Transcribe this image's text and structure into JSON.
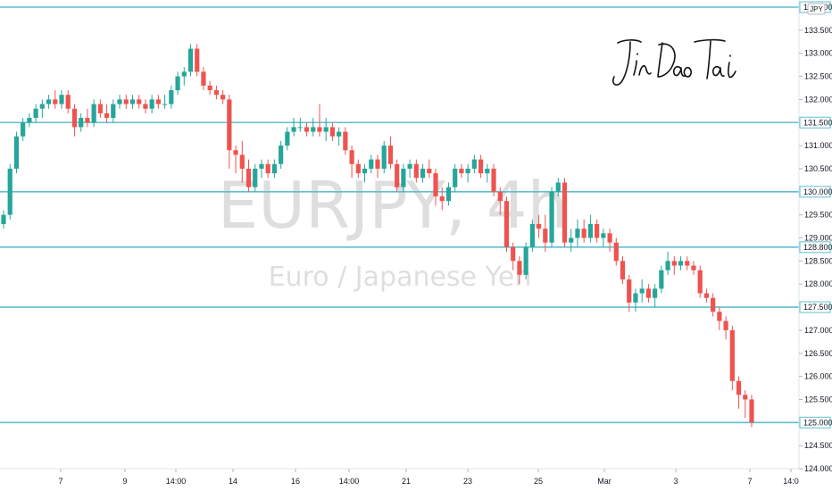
{
  "chart_data": {
    "type": "candlestick",
    "watermark": {
      "symbol": "EURJPY, 4h",
      "name": "Euro / Japanese Yen"
    },
    "currency": "JPY",
    "y_axis": {
      "range": [
        124.0,
        134.1
      ],
      "ticks": [
        "124.000",
        "124.500",
        "125.500",
        "126.000",
        "126.500",
        "127.000",
        "128.000",
        "128.500",
        "129.000",
        "129.500",
        "130.500",
        "131.000",
        "132.000",
        "132.500",
        "133.000",
        "133.500"
      ]
    },
    "x_axis": {
      "ticks": [
        "7",
        "9",
        "14:00",
        "14",
        "16",
        "14:00",
        "21",
        "23",
        "25",
        "Mar",
        "3",
        "7",
        "14:0"
      ]
    },
    "levels": [
      {
        "value": 134.0,
        "label": "134.000"
      },
      {
        "value": 131.5,
        "label": "131.500"
      },
      {
        "value": 130.0,
        "label": "130.000"
      },
      {
        "value": 128.8,
        "label": "128.800"
      },
      {
        "value": 127.5,
        "label": "127.500"
      },
      {
        "value": 125.0,
        "label": "125.000"
      }
    ],
    "level_color": "#5fbfcf",
    "up_color": "#26a69a",
    "down_color": "#ef5350",
    "candles": [
      [
        129.3,
        129.6,
        129.2,
        129.5
      ],
      [
        129.5,
        130.6,
        129.4,
        130.5
      ],
      [
        130.5,
        131.3,
        130.4,
        131.2
      ],
      [
        131.2,
        131.6,
        131.1,
        131.5
      ],
      [
        131.5,
        131.7,
        131.4,
        131.6
      ],
      [
        131.6,
        131.9,
        131.5,
        131.8
      ],
      [
        131.8,
        132.0,
        131.6,
        131.9
      ],
      [
        131.9,
        132.1,
        131.8,
        132.0
      ],
      [
        132.0,
        132.2,
        131.8,
        131.9
      ],
      [
        131.9,
        132.2,
        131.8,
        132.1
      ],
      [
        132.1,
        132.2,
        131.7,
        131.8
      ],
      [
        131.8,
        131.9,
        131.2,
        131.4
      ],
      [
        131.4,
        131.7,
        131.3,
        131.6
      ],
      [
        131.6,
        131.8,
        131.4,
        131.5
      ],
      [
        131.5,
        132.0,
        131.4,
        131.9
      ],
      [
        131.9,
        132.0,
        131.6,
        131.7
      ],
      [
        131.7,
        131.9,
        131.5,
        131.6
      ],
      [
        131.6,
        132.0,
        131.5,
        131.9
      ],
      [
        131.9,
        132.1,
        131.8,
        132.0
      ],
      [
        132.0,
        132.1,
        131.8,
        131.9
      ],
      [
        131.9,
        132.1,
        131.8,
        132.0
      ],
      [
        132.0,
        132.1,
        131.8,
        131.9
      ],
      [
        131.9,
        132.0,
        131.7,
        131.8
      ],
      [
        131.8,
        132.1,
        131.7,
        132.0
      ],
      [
        132.0,
        132.1,
        131.8,
        131.9
      ],
      [
        131.9,
        132.1,
        131.8,
        131.9
      ],
      [
        131.9,
        132.3,
        131.8,
        132.2
      ],
      [
        132.2,
        132.6,
        132.1,
        132.5
      ],
      [
        132.5,
        132.7,
        132.3,
        132.6
      ],
      [
        132.6,
        133.2,
        132.5,
        133.1
      ],
      [
        133.1,
        133.2,
        132.5,
        132.6
      ],
      [
        132.6,
        132.7,
        132.2,
        132.3
      ],
      [
        132.3,
        132.4,
        132.1,
        132.2
      ],
      [
        132.2,
        132.3,
        132.0,
        132.1
      ],
      [
        132.1,
        132.2,
        131.9,
        132.0
      ],
      [
        132.0,
        132.1,
        130.5,
        130.9
      ],
      [
        130.9,
        131.0,
        130.4,
        130.8
      ],
      [
        130.8,
        131.1,
        130.2,
        130.5
      ],
      [
        130.5,
        130.7,
        130.0,
        130.1
      ],
      [
        130.1,
        130.6,
        130.0,
        130.5
      ],
      [
        130.5,
        130.7,
        130.3,
        130.6
      ],
      [
        130.6,
        130.7,
        130.3,
        130.4
      ],
      [
        130.4,
        130.7,
        130.3,
        130.6
      ],
      [
        130.6,
        131.1,
        130.5,
        131.0
      ],
      [
        131.0,
        131.4,
        130.9,
        131.3
      ],
      [
        131.3,
        131.6,
        131.2,
        131.4
      ],
      [
        131.4,
        131.6,
        131.3,
        131.4
      ],
      [
        131.4,
        131.5,
        131.2,
        131.3
      ],
      [
        131.3,
        131.6,
        131.2,
        131.4
      ],
      [
        131.4,
        131.9,
        131.2,
        131.3
      ],
      [
        131.3,
        131.6,
        131.1,
        131.4
      ],
      [
        131.4,
        131.5,
        131.1,
        131.2
      ],
      [
        131.2,
        131.4,
        131.0,
        131.3
      ],
      [
        131.3,
        131.4,
        130.8,
        130.9
      ],
      [
        130.9,
        131.0,
        130.3,
        130.6
      ],
      [
        130.6,
        130.7,
        130.3,
        130.4
      ],
      [
        130.4,
        130.6,
        130.2,
        130.5
      ],
      [
        130.5,
        130.8,
        130.4,
        130.7
      ],
      [
        130.7,
        130.8,
        130.3,
        130.5
      ],
      [
        130.5,
        131.1,
        130.4,
        131.0
      ],
      [
        131.0,
        131.2,
        130.5,
        130.6
      ],
      [
        130.6,
        130.7,
        130.0,
        130.1
      ],
      [
        130.1,
        130.6,
        130.0,
        130.5
      ],
      [
        130.5,
        130.7,
        130.3,
        130.6
      ],
      [
        130.6,
        130.7,
        130.2,
        130.3
      ],
      [
        130.3,
        130.6,
        130.2,
        130.5
      ],
      [
        130.5,
        130.7,
        130.3,
        130.4
      ],
      [
        130.4,
        130.5,
        129.7,
        129.9
      ],
      [
        129.9,
        130.1,
        129.6,
        129.8
      ],
      [
        129.8,
        130.2,
        129.7,
        130.1
      ],
      [
        130.1,
        130.6,
        130.0,
        130.5
      ],
      [
        130.5,
        130.6,
        130.3,
        130.4
      ],
      [
        130.4,
        130.6,
        130.2,
        130.5
      ],
      [
        130.5,
        130.8,
        130.4,
        130.7
      ],
      [
        130.7,
        130.8,
        130.3,
        130.4
      ],
      [
        130.4,
        130.6,
        130.2,
        130.5
      ],
      [
        130.5,
        130.6,
        129.9,
        130.0
      ],
      [
        130.0,
        130.1,
        129.5,
        129.8
      ],
      [
        129.8,
        129.9,
        128.7,
        128.8
      ],
      [
        128.8,
        128.9,
        128.3,
        128.5
      ],
      [
        128.5,
        128.6,
        128.0,
        128.2
      ],
      [
        128.2,
        128.9,
        128.1,
        128.8
      ],
      [
        128.8,
        129.4,
        128.7,
        129.3
      ],
      [
        129.3,
        129.5,
        129.0,
        129.2
      ],
      [
        129.2,
        129.5,
        128.7,
        128.9
      ],
      [
        128.9,
        130.1,
        128.8,
        130.0
      ],
      [
        130.0,
        130.3,
        129.9,
        130.2
      ],
      [
        130.2,
        130.3,
        128.8,
        128.9
      ],
      [
        128.9,
        129.2,
        128.7,
        129.0
      ],
      [
        129.0,
        129.4,
        128.8,
        129.2
      ],
      [
        129.2,
        129.4,
        128.9,
        129.0
      ],
      [
        129.0,
        129.5,
        128.9,
        129.3
      ],
      [
        129.3,
        129.4,
        128.9,
        129.0
      ],
      [
        129.0,
        129.2,
        128.8,
        129.1
      ],
      [
        129.1,
        129.2,
        128.7,
        128.9
      ],
      [
        128.9,
        129.0,
        128.4,
        128.5
      ],
      [
        128.5,
        128.6,
        128.0,
        128.1
      ],
      [
        128.1,
        128.2,
        127.4,
        127.6
      ],
      [
        127.6,
        127.9,
        127.4,
        127.8
      ],
      [
        127.8,
        128.1,
        127.6,
        127.9
      ],
      [
        127.9,
        128.0,
        127.6,
        127.7
      ],
      [
        127.7,
        128.0,
        127.5,
        127.9
      ],
      [
        127.9,
        128.4,
        127.8,
        128.3
      ],
      [
        128.3,
        128.7,
        128.2,
        128.5
      ],
      [
        128.5,
        128.6,
        128.2,
        128.4
      ],
      [
        128.4,
        128.6,
        128.3,
        128.5
      ],
      [
        128.5,
        128.6,
        128.3,
        128.4
      ],
      [
        128.4,
        128.5,
        128.2,
        128.3
      ],
      [
        128.3,
        128.4,
        127.7,
        127.8
      ],
      [
        127.8,
        127.9,
        127.6,
        127.7
      ],
      [
        127.7,
        127.8,
        127.3,
        127.4
      ],
      [
        127.4,
        127.5,
        127.0,
        127.2
      ],
      [
        127.2,
        127.3,
        126.8,
        127.0
      ],
      [
        127.0,
        127.1,
        125.7,
        125.9
      ],
      [
        125.9,
        126.0,
        125.3,
        125.6
      ],
      [
        125.6,
        125.7,
        125.1,
        125.5
      ],
      [
        125.5,
        125.6,
        124.9,
        125.0
      ]
    ]
  },
  "signature": {
    "text": "JinDaoTai"
  }
}
